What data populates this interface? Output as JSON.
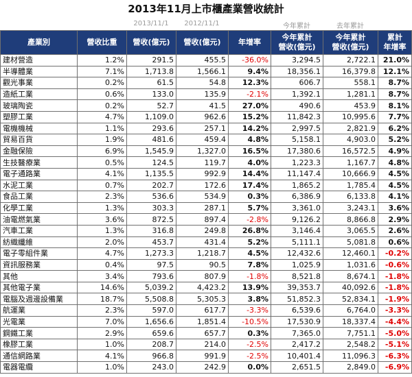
{
  "title": "2013年11月上市櫃產業營收統計",
  "subheader": {
    "col_month_2013": "2013/11/1",
    "col_month_2012": "2012/11/1",
    "col_ytd_2013": "今年累計",
    "col_ytd_2012": "去年累計"
  },
  "columns": [
    "產業別",
    "營收比重",
    "營收(億元)",
    "營收(億元)",
    "年增率",
    "今年累計\n營收(億元)",
    "今年累計\n營收(億元)",
    "累計\n年增率"
  ],
  "colors": {
    "header_bg": "#1f3d7a",
    "negative": "#e00000"
  },
  "rows": [
    {
      "name": "建材營造",
      "share": "1.2%",
      "rev2013": "291.5",
      "rev2012": "455.5",
      "yoy": "-36.0%",
      "ytd2013": "3,294.5",
      "ytd2012": "2,722.1",
      "cum": "21.0%"
    },
    {
      "name": "半導體業",
      "share": "7.1%",
      "rev2013": "1,713.8",
      "rev2012": "1,566.1",
      "yoy": "9.4%",
      "ytd2013": "18,356.1",
      "ytd2012": "16,379.8",
      "cum": "12.1%"
    },
    {
      "name": "觀光事業",
      "share": "0.2%",
      "rev2013": "61.5",
      "rev2012": "54.8",
      "yoy": "12.3%",
      "ytd2013": "606.7",
      "ytd2012": "558.1",
      "cum": "8.7%"
    },
    {
      "name": "造紙工業",
      "share": "0.6%",
      "rev2013": "133.0",
      "rev2012": "135.9",
      "yoy": "-2.1%",
      "ytd2013": "1,392.1",
      "ytd2012": "1,281.1",
      "cum": "8.7%"
    },
    {
      "name": "玻璃陶瓷",
      "share": "0.2%",
      "rev2013": "52.7",
      "rev2012": "41.5",
      "yoy": "27.0%",
      "ytd2013": "490.6",
      "ytd2012": "453.9",
      "cum": "8.1%"
    },
    {
      "name": "塑膠工業",
      "share": "4.7%",
      "rev2013": "1,109.0",
      "rev2012": "962.6",
      "yoy": "15.2%",
      "ytd2013": "11,842.3",
      "ytd2012": "10,995.6",
      "cum": "7.7%"
    },
    {
      "name": "電機機械",
      "share": "1.1%",
      "rev2013": "293.6",
      "rev2012": "257.1",
      "yoy": "14.2%",
      "ytd2013": "2,997.5",
      "ytd2012": "2,821.9",
      "cum": "6.2%"
    },
    {
      "name": "貿易百貨",
      "share": "1.9%",
      "rev2013": "481.6",
      "rev2012": "459.4",
      "yoy": "4.8%",
      "ytd2013": "5,158.1",
      "ytd2012": "4,903.0",
      "cum": "5.2%"
    },
    {
      "name": "金融保險",
      "share": "6.9%",
      "rev2013": "1,545.9",
      "rev2012": "1,327.0",
      "yoy": "16.5%",
      "ytd2013": "17,380.6",
      "ytd2012": "16,572.5",
      "cum": "4.9%"
    },
    {
      "name": "生技醫療業",
      "share": "0.5%",
      "rev2013": "124.5",
      "rev2012": "119.7",
      "yoy": "4.0%",
      "ytd2013": "1,223.3",
      "ytd2012": "1,167.7",
      "cum": "4.8%"
    },
    {
      "name": "電子通路業",
      "share": "4.1%",
      "rev2013": "1,135.5",
      "rev2012": "992.9",
      "yoy": "14.4%",
      "ytd2013": "11,147.4",
      "ytd2012": "10,666.9",
      "cum": "4.5%"
    },
    {
      "name": "水泥工業",
      "share": "0.7%",
      "rev2013": "202.7",
      "rev2012": "172.6",
      "yoy": "17.4%",
      "ytd2013": "1,865.2",
      "ytd2012": "1,785.4",
      "cum": "4.5%"
    },
    {
      "name": "食品工業",
      "share": "2.3%",
      "rev2013": "536.6",
      "rev2012": "534.9",
      "yoy": "0.3%",
      "ytd2013": "6,386.9",
      "ytd2012": "6,133.8",
      "cum": "4.1%"
    },
    {
      "name": "化學工業",
      "share": "1.3%",
      "rev2013": "303.3",
      "rev2012": "287.1",
      "yoy": "5.7%",
      "ytd2013": "3,361.0",
      "ytd2012": "3,243.1",
      "cum": "3.6%"
    },
    {
      "name": "油電燃氣業",
      "share": "3.6%",
      "rev2013": "872.5",
      "rev2012": "897.4",
      "yoy": "-2.8%",
      "ytd2013": "9,126.2",
      "ytd2012": "8,866.8",
      "cum": "2.9%"
    },
    {
      "name": "汽車工業",
      "share": "1.3%",
      "rev2013": "316.8",
      "rev2012": "249.8",
      "yoy": "26.8%",
      "ytd2013": "3,146.4",
      "ytd2012": "3,065.5",
      "cum": "2.6%"
    },
    {
      "name": "紡織纖維",
      "share": "2.0%",
      "rev2013": "453.7",
      "rev2012": "431.4",
      "yoy": "5.2%",
      "ytd2013": "5,111.1",
      "ytd2012": "5,081.8",
      "cum": "0.6%"
    },
    {
      "name": "電子零組件業",
      "share": "4.7%",
      "rev2013": "1,273.3",
      "rev2012": "1,218.7",
      "yoy": "4.5%",
      "ytd2013": "12,432.6",
      "ytd2012": "12,460.1",
      "cum": "-0.2%"
    },
    {
      "name": "資訊服務業",
      "share": "0.4%",
      "rev2013": "97.5",
      "rev2012": "90.5",
      "yoy": "7.8%",
      "ytd2013": "1,025.9",
      "ytd2012": "1,031.6",
      "cum": "-0.6%"
    },
    {
      "name": "其他",
      "share": "3.4%",
      "rev2013": "793.6",
      "rev2012": "807.9",
      "yoy": "-1.8%",
      "ytd2013": "8,521.8",
      "ytd2012": "8,674.1",
      "cum": "-1.8%"
    },
    {
      "name": "其他電子業",
      "share": "14.6%",
      "rev2013": "5,039.2",
      "rev2012": "4,423.2",
      "yoy": "13.9%",
      "ytd2013": "39,353.7",
      "ytd2012": "40,092.6",
      "cum": "-1.8%"
    },
    {
      "name": "電腦及週邊設備業",
      "share": "18.7%",
      "rev2013": "5,508.8",
      "rev2012": "5,305.3",
      "yoy": "3.8%",
      "ytd2013": "51,852.3",
      "ytd2012": "52,834.1",
      "cum": "-1.9%"
    },
    {
      "name": "航運業",
      "share": "2.3%",
      "rev2013": "597.0",
      "rev2012": "617.7",
      "yoy": "-3.3%",
      "ytd2013": "6,539.6",
      "ytd2012": "6,764.0",
      "cum": "-3.3%"
    },
    {
      "name": "光電業",
      "share": "7.0%",
      "rev2013": "1,656.6",
      "rev2012": "1,851.4",
      "yoy": "-10.5%",
      "ytd2013": "17,530.9",
      "ytd2012": "18,337.4",
      "cum": "-4.4%"
    },
    {
      "name": "鋼鐵工業",
      "share": "2.9%",
      "rev2013": "659.6",
      "rev2012": "657.7",
      "yoy": "0.3%",
      "ytd2013": "7,365.0",
      "ytd2012": "7,751.1",
      "cum": "-5.0%"
    },
    {
      "name": "橡膠工業",
      "share": "1.0%",
      "rev2013": "208.7",
      "rev2012": "214.0",
      "yoy": "-2.5%",
      "ytd2013": "2,417.2",
      "ytd2012": "2,548.2",
      "cum": "-5.1%"
    },
    {
      "name": "通信網路業",
      "share": "4.1%",
      "rev2013": "966.8",
      "rev2012": "991.9",
      "yoy": "-2.5%",
      "ytd2013": "10,401.4",
      "ytd2012": "11,096.3",
      "cum": "-6.3%"
    },
    {
      "name": "電器電纜",
      "share": "1.0%",
      "rev2013": "243.0",
      "rev2012": "242.9",
      "yoy": "0.0%",
      "ytd2013": "2,651.5",
      "ytd2012": "2,849.0",
      "cum": "-6.9%"
    }
  ]
}
